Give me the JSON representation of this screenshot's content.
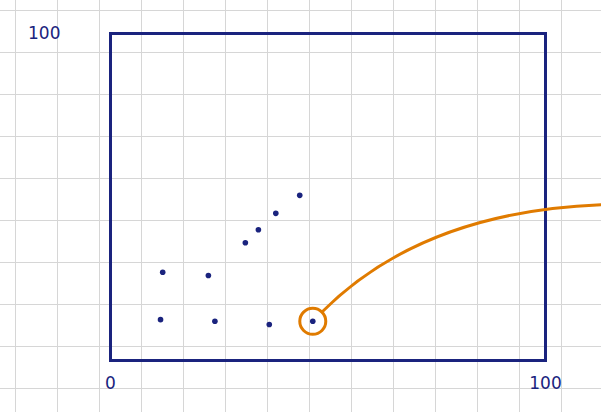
{
  "chart_data": {
    "type": "scatter",
    "xlim": [
      0,
      100
    ],
    "xticks": [
      0,
      100
    ],
    "ylim": [
      0,
      100
    ],
    "yticks": [
      100
    ],
    "color": "#1a237e",
    "series": [
      {
        "color": "#1a237e",
        "marker": "dot",
        "x": [
          11.5,
          24,
          36.5,
          46.5,
          12,
          22.5,
          31,
          34,
          38,
          43.5
        ],
        "values": [
          12.5,
          12,
          11,
          12,
          27,
          26,
          36,
          40,
          45,
          50.5
        ]
      },
      {
        "color": "#e07b00",
        "marker": "ring",
        "x": [
          46.5
        ],
        "values": [
          12
        ]
      }
    ]
  }
}
